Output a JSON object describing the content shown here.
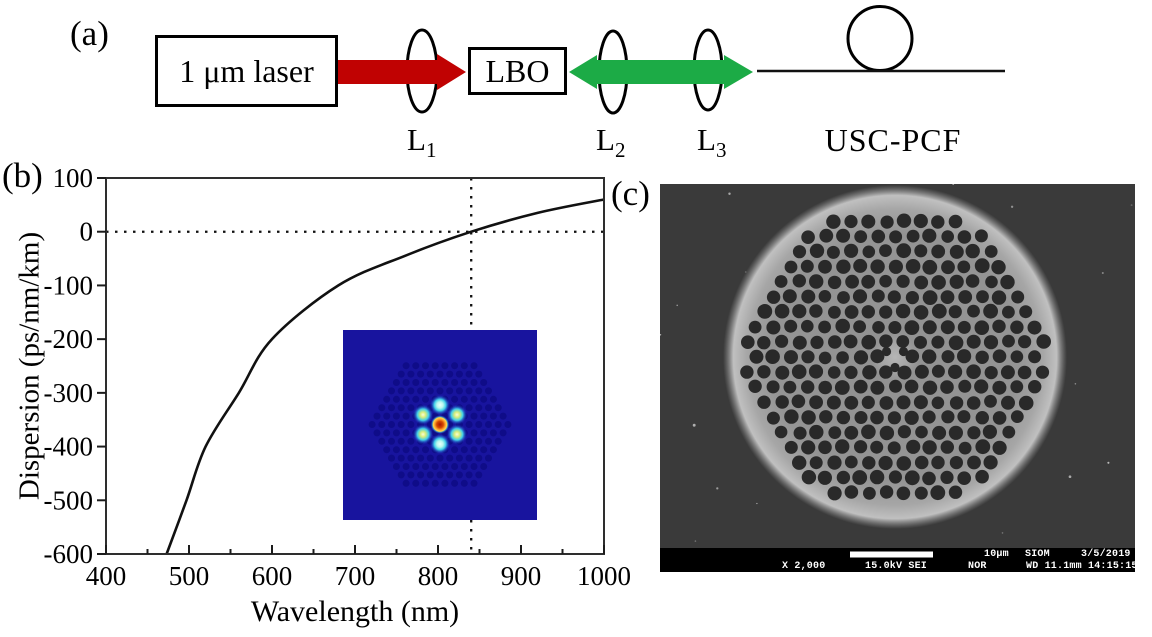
{
  "figure": {
    "panel_a": {
      "label": "(a)",
      "laser_box_label": "1 μm laser",
      "crystal_box_label": "LBO",
      "lenses": [
        {
          "base": "L",
          "sub": "1"
        },
        {
          "base": "L",
          "sub": "2"
        },
        {
          "base": "L",
          "sub": "3"
        }
      ],
      "fiber_label": "USC-PCF",
      "pump_beam_color": "#c00202",
      "shg_beam_color": "#1cab46"
    },
    "panel_b": {
      "label": "(b)",
      "inset": {
        "name": "fundamental-mode-profile",
        "background": "#18149e",
        "lattice_hole_color": "#0f0c88",
        "halo_color": "#41cfe8",
        "ring_dot_core_cyan": "#eafffb",
        "ring_dot_core_yellow": "#d9ee7a",
        "center_dot_core": "#a81300",
        "center_dot_ring": "#ffda4d"
      }
    },
    "panel_c": {
      "label": "(c)",
      "info_bar": {
        "scale_label": "10μm",
        "lab": "SIOM",
        "date": "3/5/2019",
        "magnification": "X 2,000",
        "voltage_detector": "15.0kV SEI",
        "mode": "NOR",
        "wd_time": "WD 11.1mm 14:15:15"
      }
    }
  },
  "chart_data": {
    "type": "line",
    "title": "",
    "xlabel": "Wavelength (nm)",
    "ylabel": "Dispersion (ps/nm/km)",
    "xlim": [
      400,
      1000
    ],
    "ylim": [
      -600,
      100
    ],
    "xticks": [
      400,
      500,
      600,
      700,
      800,
      900,
      1000
    ],
    "x_minor_ticks": [
      450,
      550,
      650,
      750,
      850,
      950
    ],
    "yticks": [
      100,
      0,
      -100,
      -200,
      -300,
      -400,
      -500,
      -600
    ],
    "grid": false,
    "legend": false,
    "series": [
      {
        "name": "USC-PCF dispersion",
        "x": [
          473,
          497,
          520,
          560,
          600,
          680,
          760,
          840,
          920,
          1000
        ],
        "y": [
          -600,
          -500,
          -400,
          -300,
          -200,
          -100,
          -45,
          0,
          35,
          60
        ]
      }
    ],
    "annotations": {
      "zero_dispersion_wavelength_nm": 840,
      "dotted_h_line_y": 0,
      "dotted_v_line_x": 840
    }
  }
}
